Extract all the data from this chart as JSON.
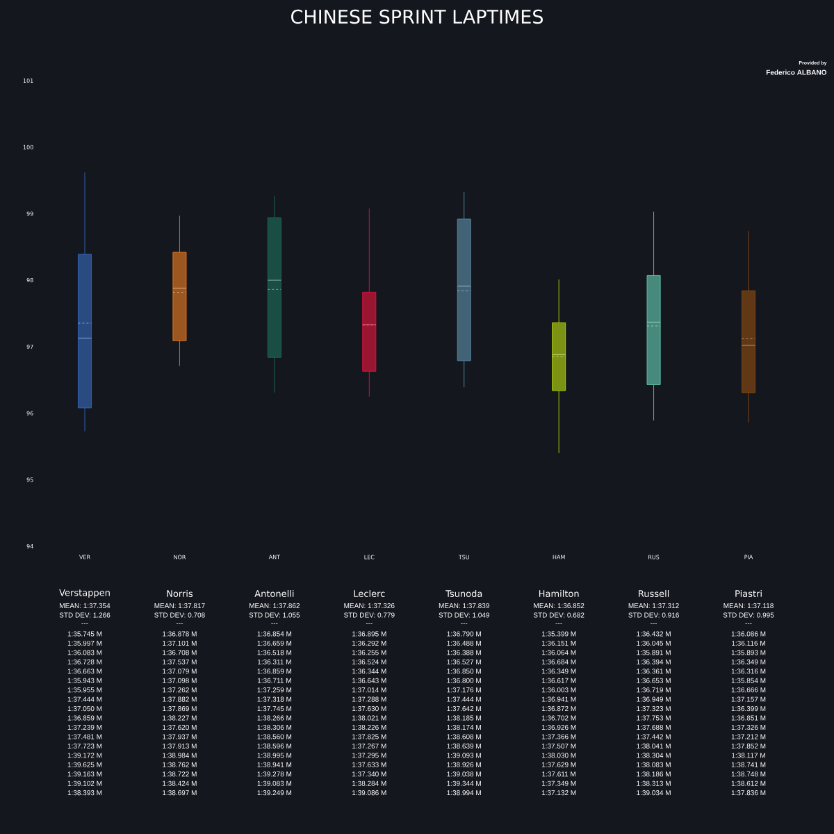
{
  "chart_data": {
    "type": "box",
    "title": "CHINESE SPRINT LAPTIMES",
    "categories": [
      "VER",
      "NOR",
      "ANT",
      "LEC",
      "TSU",
      "HAM",
      "RUS",
      "PIA"
    ],
    "boxes": [
      {
        "low": 95.73,
        "q1": 96.08,
        "median": 97.13,
        "q3": 98.39,
        "high": 99.62,
        "mean": 97.354
      },
      {
        "low": 96.71,
        "q1": 97.09,
        "median": 97.88,
        "q3": 98.42,
        "high": 98.97,
        "mean": 97.817
      },
      {
        "low": 96.31,
        "q1": 96.84,
        "median": 98.0,
        "q3": 98.94,
        "high": 99.27,
        "mean": 97.862
      },
      {
        "low": 96.25,
        "q1": 96.63,
        "median": 97.33,
        "q3": 97.82,
        "high": 99.08,
        "mean": 97.326
      },
      {
        "low": 96.39,
        "q1": 96.79,
        "median": 97.91,
        "q3": 98.92,
        "high": 99.33,
        "mean": 97.839
      },
      {
        "low": 95.4,
        "q1": 96.34,
        "median": 96.88,
        "q3": 97.36,
        "high": 98.01,
        "mean": 96.852
      },
      {
        "low": 95.89,
        "q1": 96.43,
        "median": 97.37,
        "q3": 98.07,
        "high": 99.03,
        "mean": 97.312
      },
      {
        "low": 95.86,
        "q1": 96.31,
        "median": 97.02,
        "q3": 97.84,
        "high": 98.74,
        "mean": 97.118
      }
    ],
    "colors": [
      "#3567b8",
      "#e57a22",
      "#1d6b58",
      "#e0143c",
      "#5a8aa6",
      "#b2d40e",
      "#62c6ae",
      "#8a4a12"
    ],
    "ylim": [
      94,
      101
    ],
    "yticks": [
      94,
      95,
      96,
      97,
      98,
      99,
      100,
      101
    ],
    "annotations": [
      "Provided by",
      "Federico ALBANO",
      "Verstappen",
      "MEAN: 1:37.354",
      "STD DEV: 1.266",
      "---",
      "1:35.745 M",
      "1:35.997 M",
      "1:36.083 M",
      "1:36.728 M",
      "1:36.663 M",
      "1:35.943 M",
      "1:35.955 M",
      "1:37.444 M",
      "1:37.050 M",
      "1:36.859 M",
      "1:37.239 M",
      "1:37.481 M",
      "1:37.723 M",
      "1:39.172 M",
      "1:39.625 M",
      "1:39.163 M",
      "1:39.102 M",
      "1:38.393 M",
      "Norris",
      "MEAN: 1:37.817",
      "STD DEV: 0.708",
      "---",
      "1:36.878 M",
      "1:37.101 M",
      "1:36.708 M",
      "1:37.537 M",
      "1:37.079 M",
      "1:37.098 M",
      "1:37.262 M",
      "1:37.882 M",
      "1:37.869 M",
      "1:38.227 M",
      "1:37.620 M",
      "1:37.937 M",
      "1:37.913 M",
      "1:38.984 M",
      "1:38.762 M",
      "1:38.722 M",
      "1:38.424 M",
      "1:38.697 M",
      "Antonelli",
      "MEAN: 1:37.862",
      "STD DEV: 1.055",
      "---",
      "1:36.854 M",
      "1:36.659 M",
      "1:36.518 M",
      "1:36.311 M",
      "1:36.859 M",
      "1:36.711 M",
      "1:37.259 M",
      "1:37.318 M",
      "1:37.745 M",
      "1:38.266 M",
      "1:38.306 M",
      "1:38.560 M",
      "1:38.596 M",
      "1:38.995 M",
      "1:38.941 M",
      "1:39.278 M",
      "1:39.083 M",
      "1:39.249 M",
      "Leclerc",
      "MEAN: 1:37.326",
      "STD DEV: 0.779",
      "---",
      "1:36.895 M",
      "1:36.292 M",
      "1:36.255 M",
      "1:36.524 M",
      "1:36.344 M",
      "1:36.643 M",
      "1:37.014 M",
      "1:37.288 M",
      "1:37.630 M",
      "1:38.021 M",
      "1:38.226 M",
      "1:37.825 M",
      "1:37.267 M",
      "1:37.295 M",
      "1:37.633 M",
      "1:37.340 M",
      "1:38.284 M",
      "1:39.086 M",
      "Tsunoda",
      "MEAN: 1:37.839",
      "STD DEV: 1.049",
      "---",
      "1:36.790 M",
      "1:36.488 M",
      "1:36.388 M",
      "1:36.527 M",
      "1:36.850 M",
      "1:36.800 M",
      "1:37.176 M",
      "1:37.444 M",
      "1:37.642 M",
      "1:38.185 M",
      "1:38.174 M",
      "1:38.608 M",
      "1:38.639 M",
      "1:39.093 M",
      "1:38.926 M",
      "1:39.038 M",
      "1:39.344 M",
      "1:38.994 M",
      "Hamilton",
      "MEAN: 1:36.852",
      "STD DEV: 0.682",
      "---",
      "1:35.399 M",
      "1:36.151 M",
      "1:36.064 M",
      "1:36.684 M",
      "1:36.349 M",
      "1:36.617 M",
      "1:36.003 M",
      "1:36.941 M",
      "1:36.872 M",
      "1:36.702 M",
      "1:36.926 M",
      "1:37.366 M",
      "1:37.507 M",
      "1:38.030 M",
      "1:37.629 M",
      "1:37.611 M",
      "1:37.349 M",
      "1:37.132 M",
      "Russell",
      "MEAN: 1:37.312",
      "STD DEV: 0.916",
      "---",
      "1:36.432 M",
      "1:36.045 M",
      "1:35.891 M",
      "1:36.394 M",
      "1:36.361 M",
      "1:36.653 M",
      "1:36.719 M",
      "1:36.949 M",
      "1:37.323 M",
      "1:37.753 M",
      "1:37.688 M",
      "1:37.442 M",
      "1:38.041 M",
      "1:38.304 M",
      "1:38.083 M",
      "1:38.186 M",
      "1:38.313 M",
      "1:39.034 M",
      "Piastri",
      "MEAN: 1:37.118",
      "STD DEV: 0.995",
      "---",
      "1:36.086 M",
      "1:36.116 M",
      "1:35.893 M",
      "1:36.349 M",
      "1:36.316 M",
      "1:35.854 M",
      "1:36.666 M",
      "1:37.157 M",
      "1:36.399 M",
      "1:36.851 M",
      "1:37.326 M",
      "1:37.212 M",
      "1:37.852 M",
      "1:38.117 M",
      "1:38.741 M",
      "1:38.748 M",
      "1:38.612 M",
      "1:37.836 M"
    ]
  }
}
